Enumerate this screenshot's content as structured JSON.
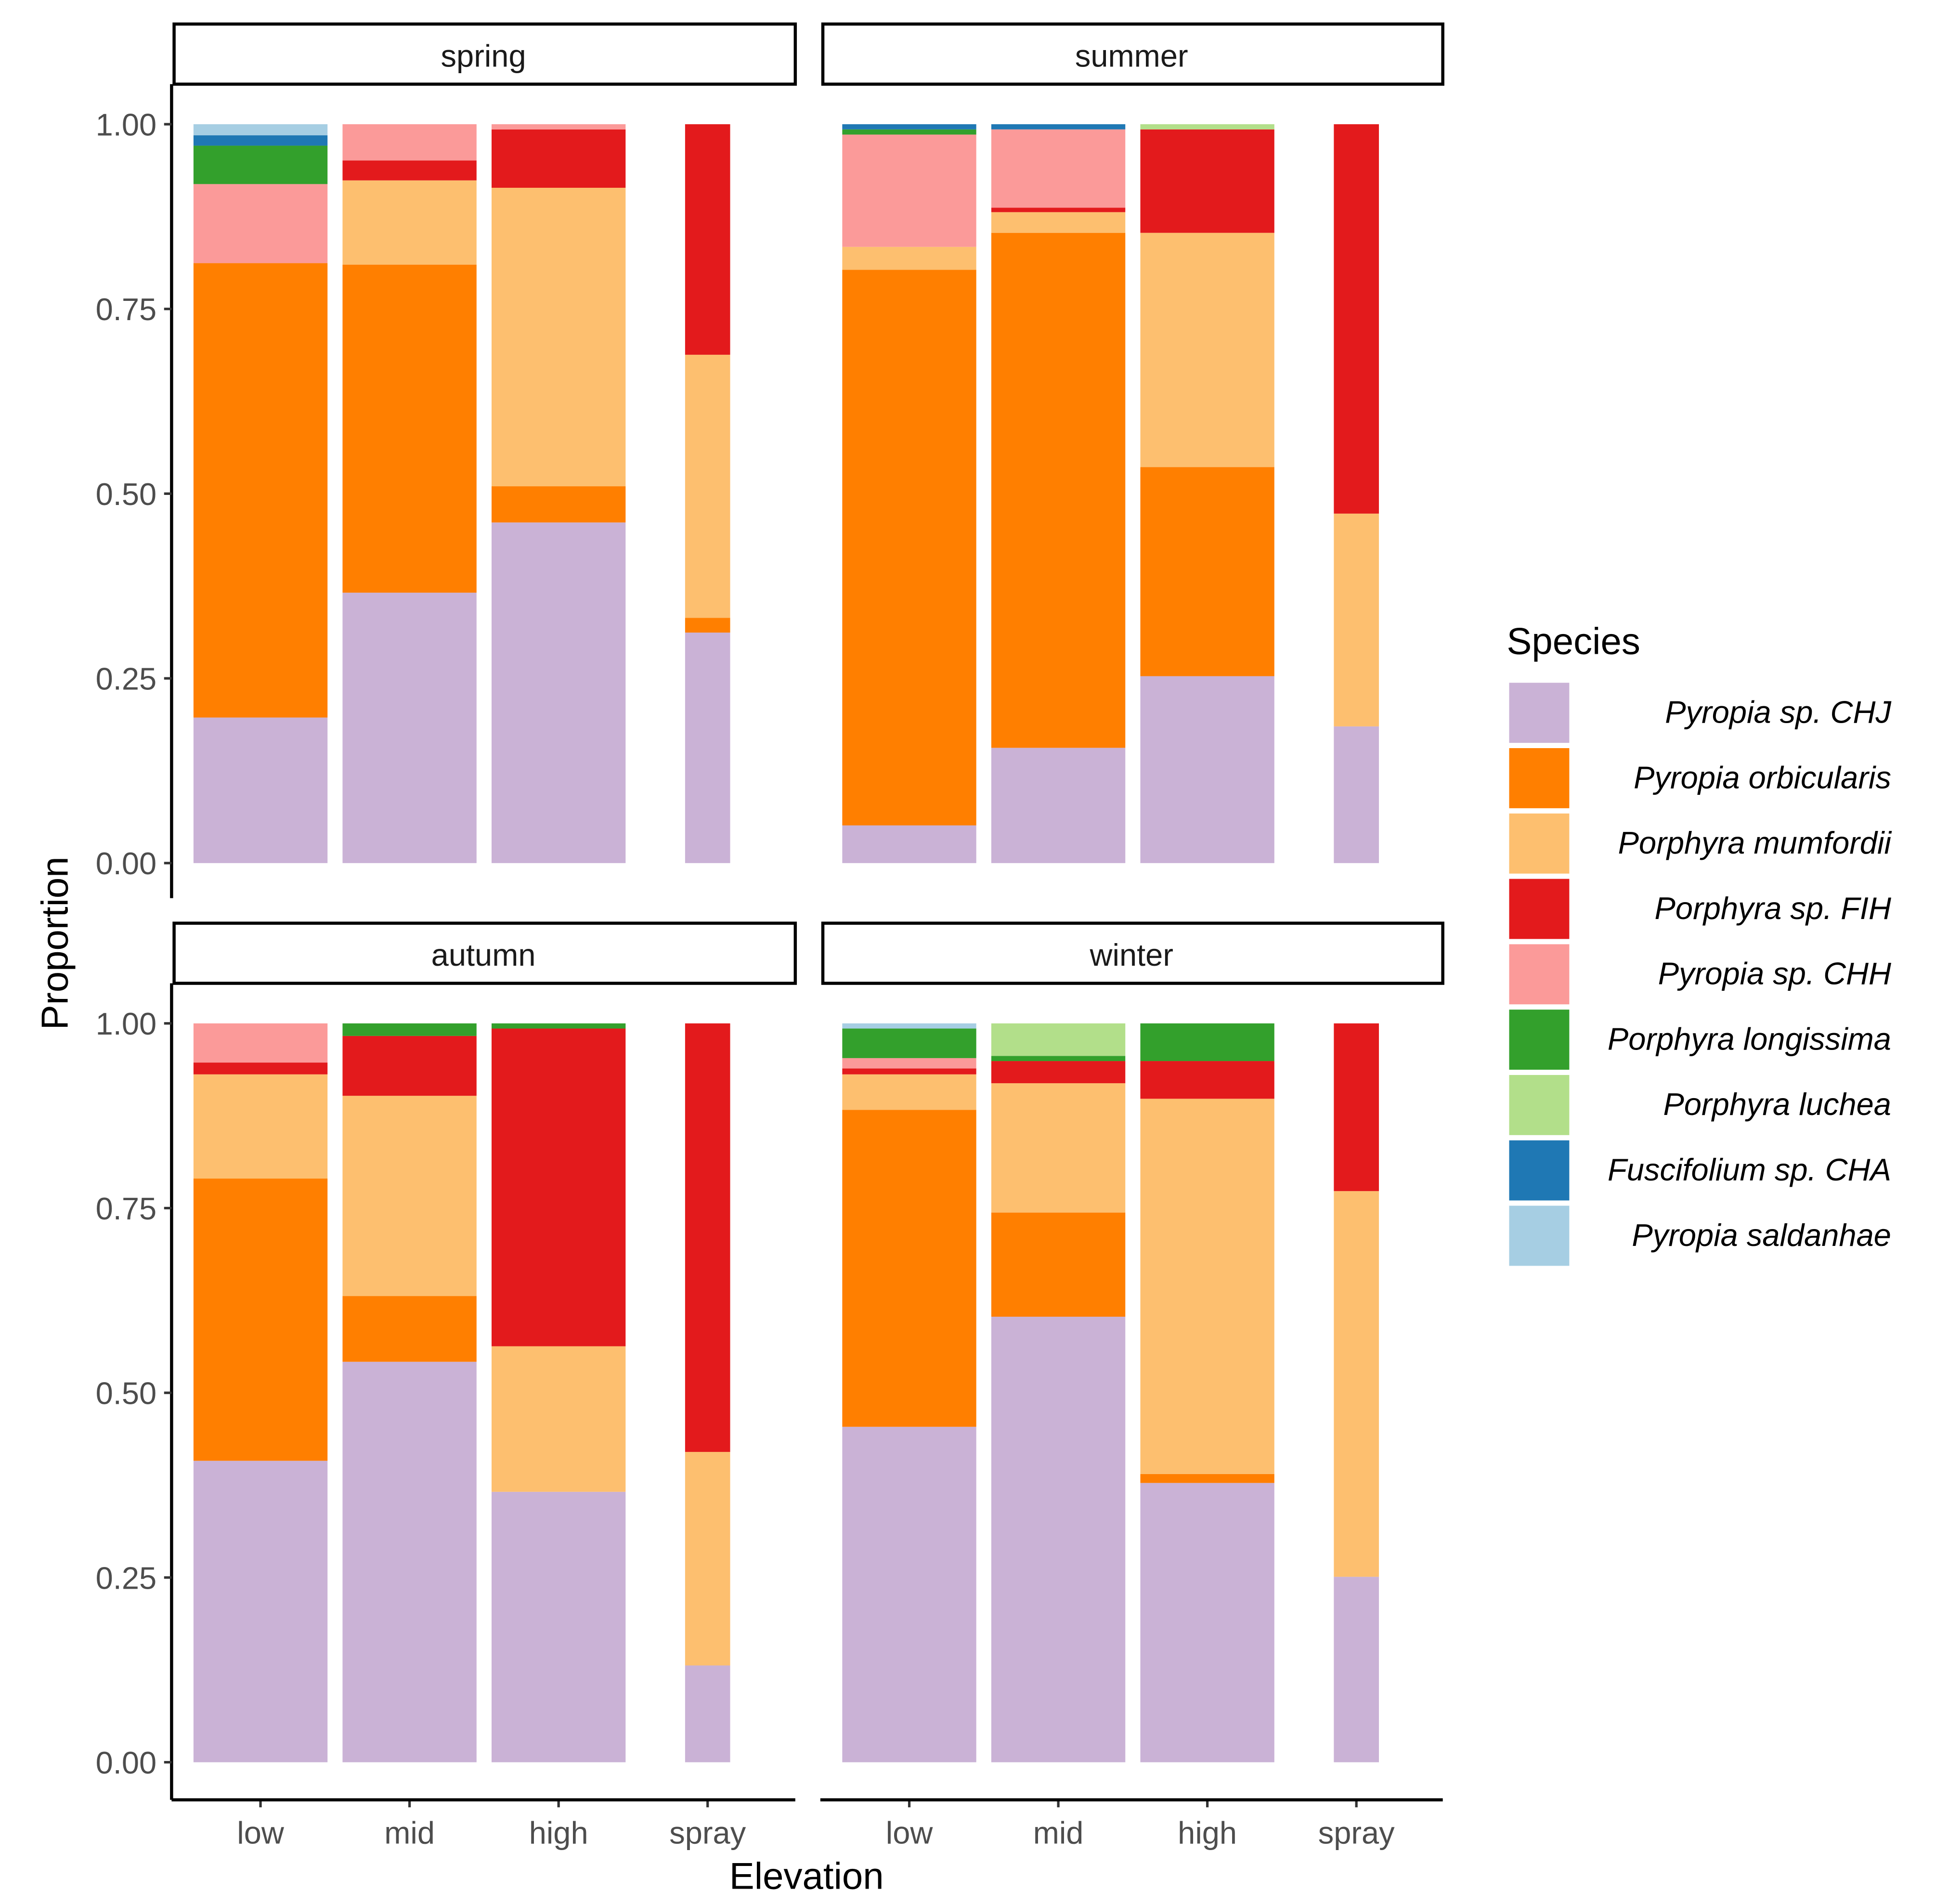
{
  "chart_data": {
    "type": "bar",
    "stacked": true,
    "xlabel": "Elevation",
    "ylabel": "Proportion",
    "ylim": [
      0,
      1
    ],
    "yticks": [
      "0.00",
      "0.25",
      "0.50",
      "0.75",
      "1.00"
    ],
    "ytick_values": [
      0,
      0.25,
      0.5,
      0.75,
      1.0
    ],
    "categories": [
      "low",
      "mid",
      "high",
      "spray"
    ],
    "legend": {
      "title": "Species",
      "placement": "right",
      "species": [
        "Pyropia sp. CHJ",
        "Pyropia orbicularis",
        "Porphyra mumfordii",
        "Porphyra sp. FIH",
        "Pyropia sp. CHH",
        "Porphyra longissima",
        "Porphyra luchea",
        "Fuscifolium sp. CHA",
        "Pyropia saldanhae"
      ],
      "colors": [
        "#cab2d6",
        "#ff7f00",
        "#fdbf6f",
        "#e31a1c",
        "#fb9a99",
        "#33a02c",
        "#b2df8a",
        "#1f78b4",
        "#a6cee3"
      ]
    },
    "facets": [
      {
        "name": "spring",
        "values": [
          [
            0.197,
            0.615,
            0.0,
            0.0,
            0.107,
            0.052,
            0.0,
            0.014,
            0.015
          ],
          [
            0.366,
            0.444,
            0.114,
            0.027,
            0.049,
            0.0,
            0.0,
            0.0,
            0.0
          ],
          [
            0.461,
            0.049,
            0.404,
            0.079,
            0.007,
            0.0,
            0.0,
            0.0,
            0.0
          ],
          [
            0.312,
            0.02,
            0.356,
            0.312,
            0.0,
            0.0,
            0.0,
            0.0,
            0.0
          ]
        ]
      },
      {
        "name": "summer",
        "values": [
          [
            0.051,
            0.752,
            0.031,
            0.0,
            0.152,
            0.007,
            0.0,
            0.007,
            0.0
          ],
          [
            0.156,
            0.697,
            0.028,
            0.006,
            0.106,
            0.0,
            0.0,
            0.007,
            0.0
          ],
          [
            0.253,
            0.283,
            0.317,
            0.14,
            0.0,
            0.0,
            0.007,
            0.0,
            0.0
          ],
          [
            0.185,
            0.0,
            0.288,
            0.527,
            0.0,
            0.0,
            0.0,
            0.0,
            0.0
          ]
        ]
      },
      {
        "name": "autumn",
        "values": [
          [
            0.408,
            0.382,
            0.141,
            0.016,
            0.053,
            0.0,
            0.0,
            0.0,
            0.0
          ],
          [
            0.542,
            0.089,
            0.271,
            0.081,
            0.0,
            0.017,
            0.0,
            0.0,
            0.0
          ],
          [
            0.366,
            0.0,
            0.197,
            0.43,
            0.0,
            0.007,
            0.0,
            0.0,
            0.0
          ],
          [
            0.131,
            0.0,
            0.289,
            0.58,
            0.0,
            0.0,
            0.0,
            0.0,
            0.0
          ]
        ]
      },
      {
        "name": "winter",
        "values": [
          [
            0.454,
            0.429,
            0.048,
            0.008,
            0.014,
            0.04,
            0.0,
            0.0,
            0.007
          ],
          [
            0.603,
            0.141,
            0.175,
            0.03,
            0.0,
            0.007,
            0.044,
            0.0,
            0.0
          ],
          [
            0.378,
            0.012,
            0.508,
            0.051,
            0.0,
            0.051,
            0.0,
            0.0,
            0.0
          ],
          [
            0.251,
            0.0,
            0.522,
            0.227,
            0.0,
            0.0,
            0.0,
            0.0,
            0.0
          ]
        ]
      }
    ]
  }
}
